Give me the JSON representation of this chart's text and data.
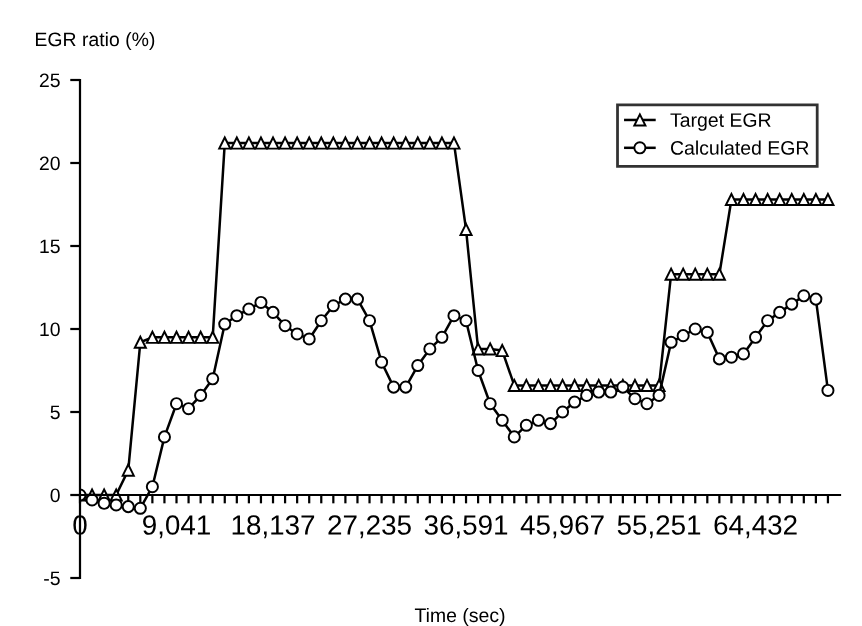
{
  "chart_data": {
    "type": "line",
    "xlabel": "Time (sec)",
    "ylabel": "EGR ratio (%)",
    "categories": [
      "0",
      null,
      null,
      null,
      null,
      null,
      null,
      null,
      "9,041",
      null,
      null,
      null,
      null,
      null,
      null,
      null,
      "18,137",
      null,
      null,
      null,
      null,
      null,
      null,
      null,
      "27,235",
      null,
      null,
      null,
      null,
      null,
      null,
      null,
      "36,591",
      null,
      null,
      null,
      null,
      null,
      null,
      null,
      "45,967",
      null,
      null,
      null,
      null,
      null,
      null,
      null,
      "55,251",
      null,
      null,
      null,
      null,
      null,
      null,
      null,
      "64,432",
      null,
      null,
      null,
      null,
      null,
      null
    ],
    "series": [
      {
        "name": "Target EGR",
        "color": "#000000",
        "marker": "triangle",
        "values": [
          0,
          0,
          0,
          0,
          1.5,
          9.2,
          9.5,
          9.5,
          9.5,
          9.5,
          9.5,
          9.5,
          21.2,
          21.2,
          21.2,
          21.2,
          21.2,
          21.2,
          21.2,
          21.2,
          21.2,
          21.2,
          21.2,
          21.2,
          21.2,
          21.2,
          21.2,
          21.2,
          21.2,
          21.2,
          21.2,
          21.2,
          16,
          8.8,
          8.8,
          8.7,
          6.6,
          6.6,
          6.6,
          6.6,
          6.6,
          6.6,
          6.6,
          6.6,
          6.6,
          6.6,
          6.6,
          6.6,
          6.6,
          13.3,
          13.3,
          13.3,
          13.3,
          13.3,
          17.8,
          17.8,
          17.8,
          17.8,
          17.8,
          17.8,
          17.8,
          17.8,
          17.8
        ]
      },
      {
        "name": "Calculated EGR",
        "color": "#000000",
        "marker": "circle",
        "values": [
          0,
          -0.3,
          -0.5,
          -0.6,
          -0.7,
          -0.8,
          0.5,
          3.5,
          5.5,
          5.2,
          6,
          7,
          10.3,
          10.8,
          11.2,
          11.6,
          11,
          10.2,
          9.7,
          9.4,
          10.5,
          11.4,
          11.8,
          11.8,
          10.5,
          8,
          6.5,
          6.5,
          7.8,
          8.8,
          9.5,
          10.8,
          10.5,
          7.5,
          5.5,
          4.5,
          3.5,
          4.2,
          4.5,
          4.3,
          5,
          5.6,
          6,
          6.2,
          6.2,
          6.5,
          5.8,
          5.5,
          6,
          9.2,
          9.6,
          10,
          9.8,
          8.2,
          8.3,
          8.5,
          9.5,
          10.5,
          11,
          11.5,
          12,
          11.8,
          6.3
        ]
      }
    ],
    "ylim": [
      -5,
      25
    ],
    "yticks": [
      -5,
      0,
      5,
      10,
      15,
      20,
      25
    ],
    "grid": false,
    "legend": "top right",
    "line_style": "solid"
  }
}
